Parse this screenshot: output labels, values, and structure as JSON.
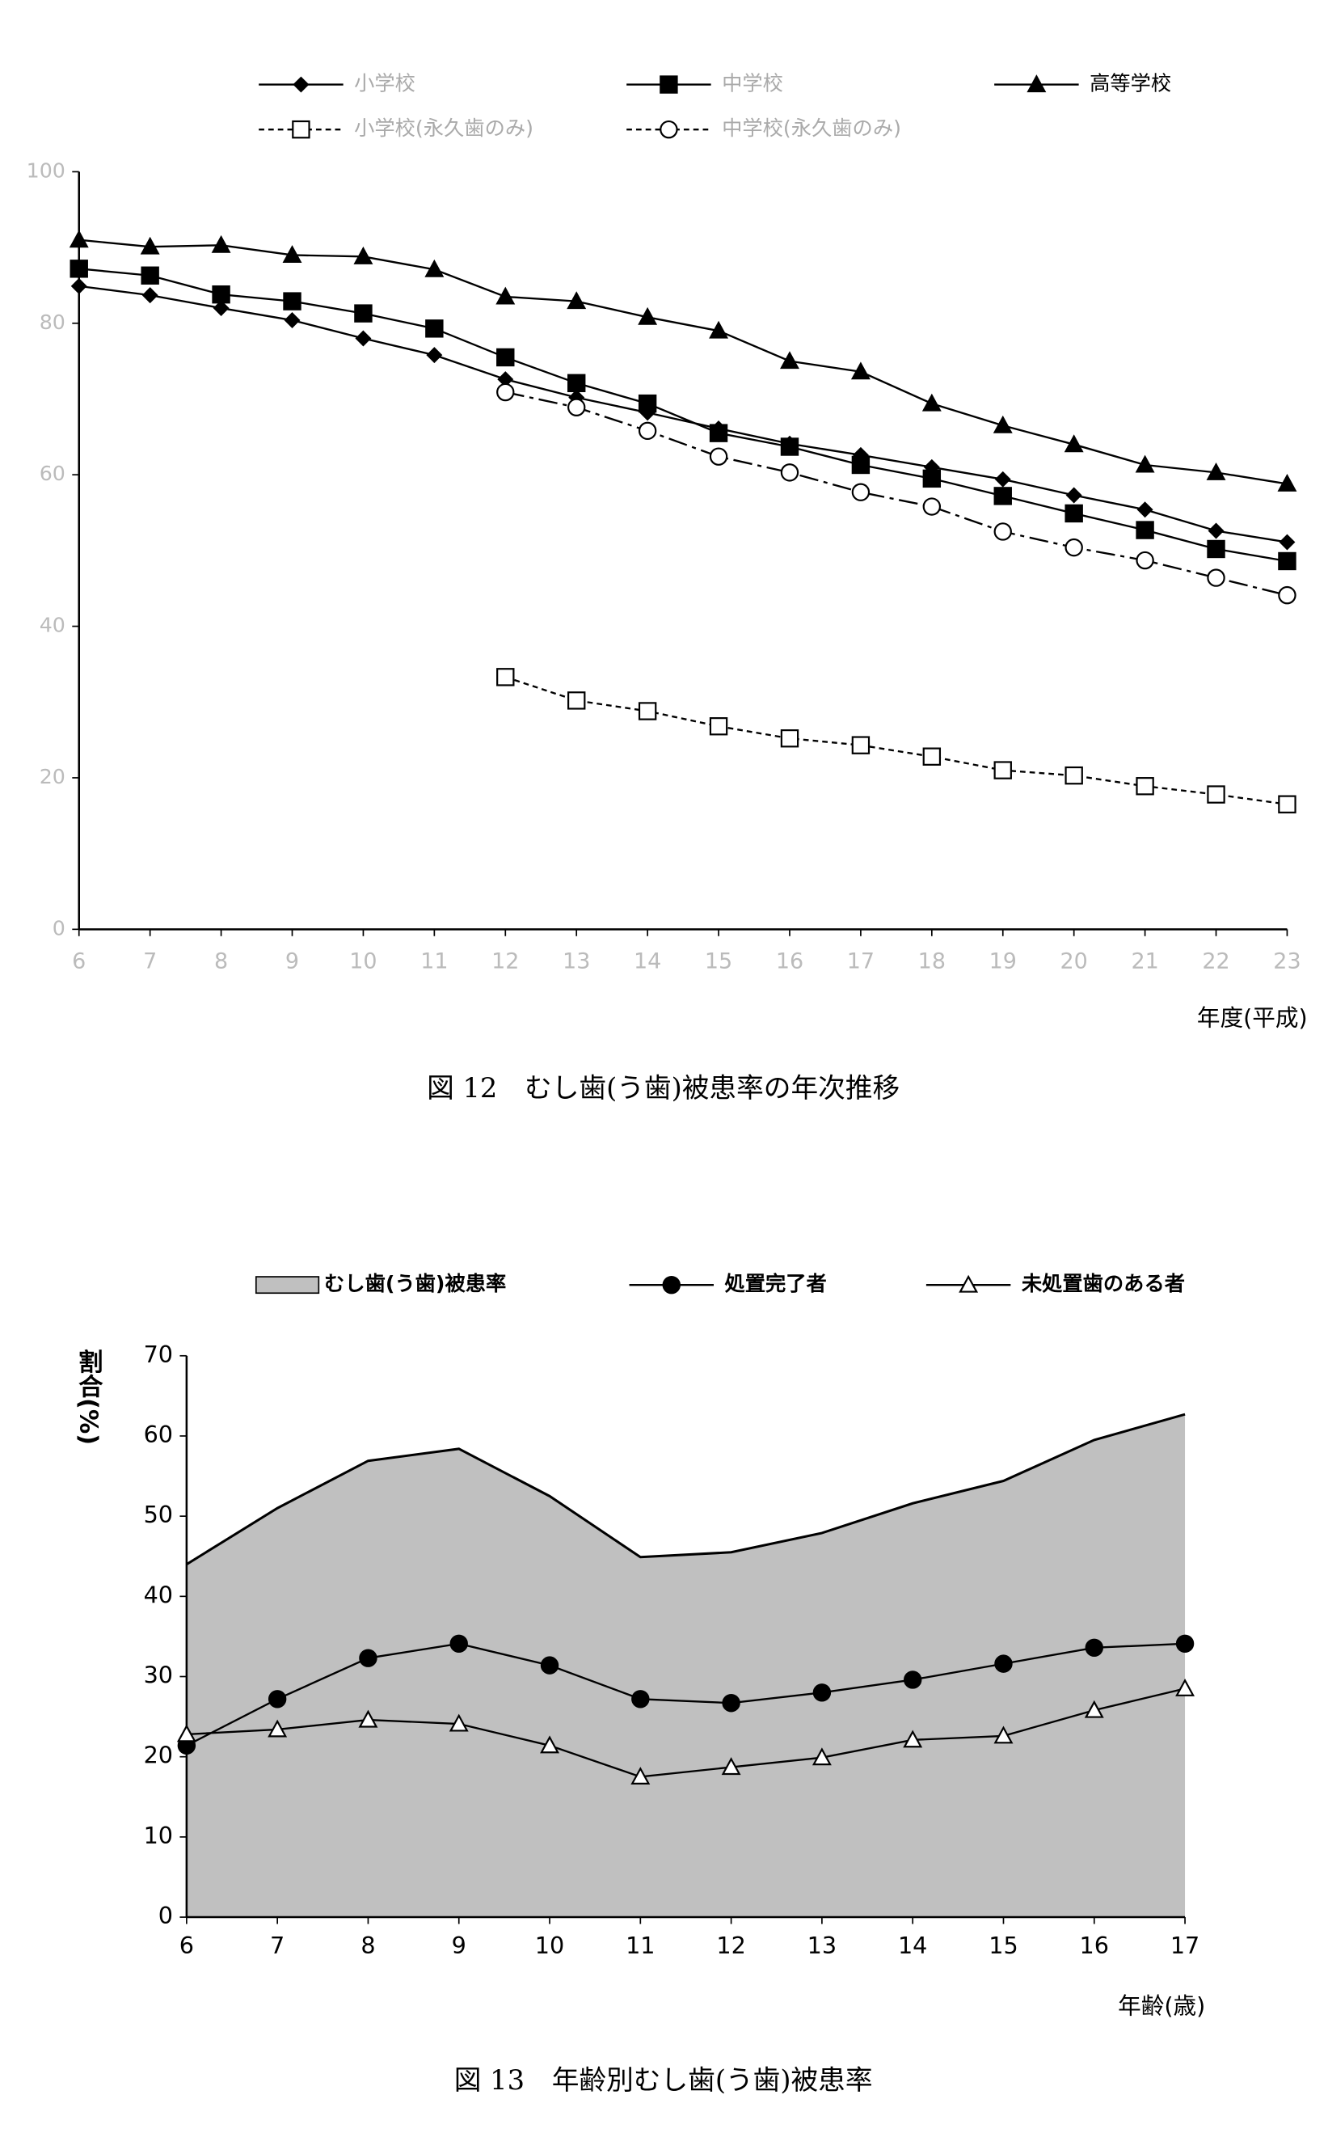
{
  "chart_data": [
    {
      "type": "line",
      "caption": "図 12　むし歯(う歯)被患率の年次推移",
      "x_label": "年度(平成)",
      "x": [
        6,
        7,
        8,
        9,
        10,
        11,
        12,
        13,
        14,
        15,
        16,
        17,
        18,
        19,
        20,
        21,
        22,
        23
      ],
      "xlim": [
        6,
        23
      ],
      "xticks": [
        6,
        7,
        8,
        9,
        10,
        11,
        12,
        13,
        14,
        15,
        16,
        17,
        18,
        19,
        20,
        21,
        22,
        23
      ],
      "ylim": [
        0,
        100
      ],
      "yticks": [
        0,
        20,
        40,
        60,
        80,
        100
      ],
      "series": [
        {
          "name": "小学校",
          "color": "#000000",
          "marker": "diamond",
          "dash": false,
          "values": [
            84.9,
            83.7,
            82.0,
            80.4,
            78.0,
            75.8,
            72.6,
            70.2,
            68.2,
            66.1,
            64.1,
            62.6,
            61.0,
            59.4,
            57.3,
            55.4,
            52.6,
            51.1
          ]
        },
        {
          "name": "中学校",
          "color": "#000000",
          "marker": "square",
          "dash": false,
          "values": [
            87.2,
            86.3,
            83.8,
            82.9,
            81.3,
            79.3,
            75.5,
            72.1,
            69.4,
            65.5,
            63.7,
            61.3,
            59.5,
            57.2,
            54.9,
            52.7,
            50.2,
            48.6
          ]
        },
        {
          "name": "高等学校",
          "color": "#000000",
          "marker": "triangle",
          "dash": false,
          "values": [
            91.0,
            90.1,
            90.3,
            89.0,
            88.8,
            87.1,
            83.5,
            82.9,
            80.8,
            79.0,
            75.0,
            73.6,
            69.4,
            66.5,
            64.0,
            61.3,
            60.3,
            58.8
          ]
        },
        {
          "name": "小学校(永久歯のみ)",
          "color": "#000000",
          "marker": "square-open",
          "dash": true,
          "values": [
            null,
            null,
            null,
            null,
            null,
            null,
            33.3,
            30.2,
            28.8,
            26.8,
            25.2,
            24.3,
            22.8,
            21.0,
            20.3,
            18.9,
            17.8,
            16.5
          ]
        },
        {
          "name": "中学校(永久歯のみ)",
          "color": "#000000",
          "marker": "circle-open",
          "dash": true,
          "values": [
            null,
            null,
            null,
            null,
            null,
            null,
            70.9,
            68.9,
            65.8,
            62.4,
            60.3,
            57.7,
            55.8,
            52.5,
            50.4,
            48.7,
            46.4,
            44.1
          ]
        }
      ]
    },
    {
      "type": "area-line",
      "caption": "図 13　年齢別むし歯(う歯)被患率",
      "x_label": "年齢(歳)",
      "y_label": "割合(%)",
      "x": [
        6,
        7,
        8,
        9,
        10,
        11,
        12,
        13,
        14,
        15,
        16,
        17
      ],
      "xlim": [
        6,
        17
      ],
      "xticks": [
        6,
        7,
        8,
        9,
        10,
        11,
        12,
        13,
        14,
        15,
        16,
        17
      ],
      "ylim": [
        0,
        70
      ],
      "yticks": [
        0,
        10,
        20,
        30,
        40,
        50,
        60,
        70
      ],
      "series": [
        {
          "name": "むし歯(う歯)被患率",
          "color": "#c0c0c0",
          "marker": "area",
          "values": [
            44.0,
            51.0,
            56.9,
            58.4,
            52.5,
            44.9,
            45.5,
            47.9,
            51.6,
            54.4,
            59.5,
            62.7
          ]
        },
        {
          "name": "処置完了者",
          "color": "#000000",
          "marker": "circle",
          "values": [
            21.4,
            27.2,
            32.3,
            34.1,
            31.4,
            27.2,
            26.7,
            28.0,
            29.6,
            31.6,
            33.6,
            34.1
          ]
        },
        {
          "name": "未処置歯のある者",
          "color": "#000000",
          "marker": "triangle-open",
          "values": [
            22.8,
            23.4,
            24.6,
            24.1,
            21.4,
            17.5,
            18.7,
            19.9,
            22.1,
            22.6,
            25.8,
            28.5
          ]
        }
      ]
    }
  ]
}
